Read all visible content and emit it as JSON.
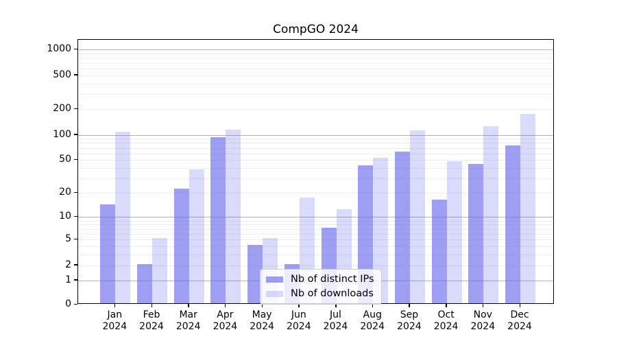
{
  "chart_data": {
    "type": "bar",
    "title": "CompGO 2024",
    "categories": [
      "Jan",
      "Feb",
      "Mar",
      "Apr",
      "May",
      "Jun",
      "Jul",
      "Aug",
      "Sep",
      "Oct",
      "Nov",
      "Dec"
    ],
    "xtick_year": "2024",
    "series": [
      {
        "name": "Nb of distinct IPs",
        "values": [
          14,
          2,
          22,
          90,
          4,
          2,
          7,
          42,
          61,
          16,
          43,
          72
        ],
        "color_hex": "#a4a4f1",
        "fill_rgba": "rgba(108,108,236,0.66)"
      },
      {
        "name": "Nb of downloads",
        "values": [
          105,
          5,
          37,
          110,
          5,
          17,
          12,
          51,
          108,
          47,
          122,
          170
        ],
        "color_hex": "#d9d9f9",
        "fill_rgba": "rgba(108,108,236,0.25)"
      }
    ],
    "yscale": "log1p",
    "ylim": [
      0,
      1300
    ],
    "ytick_labels": [
      "0",
      "1",
      "2",
      "5",
      "10",
      "20",
      "50",
      "100",
      "200",
      "500",
      "1000"
    ],
    "ytick_values": [
      0,
      1,
      2,
      5,
      10,
      20,
      50,
      100,
      200,
      500,
      1000
    ],
    "major_gridline_values": [
      1,
      10,
      100,
      1000
    ],
    "grid": true,
    "legend_position": "lower-center",
    "xlabel": "",
    "ylabel": ""
  }
}
